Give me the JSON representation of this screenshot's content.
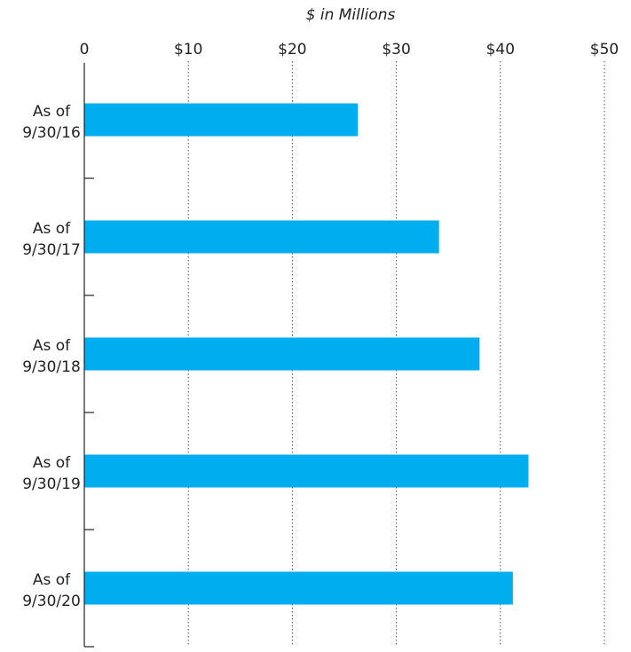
{
  "chart_data": {
    "type": "bar",
    "orientation": "horizontal",
    "title": "",
    "xlabel": "$ in Millions",
    "ylabel": "",
    "xlim": [
      0,
      50
    ],
    "x_ticks": [
      0,
      10,
      20,
      30,
      40,
      50
    ],
    "x_tick_labels": [
      "0",
      "$10",
      "$20",
      "$30",
      "$40",
      "$50"
    ],
    "x_axis_position": "top",
    "grid": "vertical dotted",
    "legend": "none",
    "categories": [
      [
        "As of",
        "9/30/16"
      ],
      [
        "As of",
        "9/30/17"
      ],
      [
        "As of",
        "9/30/18"
      ],
      [
        "As of",
        "9/30/19"
      ],
      [
        "As of",
        "9/30/20"
      ]
    ],
    "values": [
      26.3,
      34.1,
      38.0,
      42.7,
      41.2
    ],
    "bar_color": "#00AEEF"
  }
}
